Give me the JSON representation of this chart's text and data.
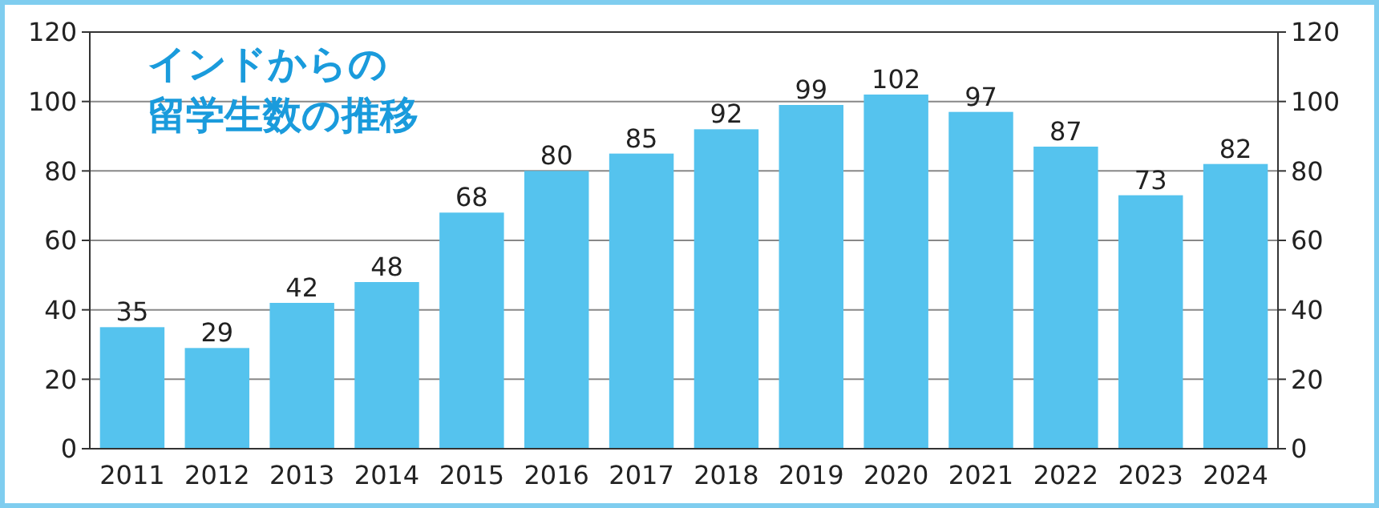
{
  "chart_data": {
    "type": "bar",
    "title": "インドからの",
    "subtitle": "留学生数の推移",
    "categories": [
      "2011",
      "2012",
      "2013",
      "2014",
      "2015",
      "2016",
      "2017",
      "2018",
      "2019",
      "2020",
      "2021",
      "2022",
      "2023",
      "2024"
    ],
    "values": [
      35,
      29,
      42,
      48,
      68,
      80,
      85,
      92,
      99,
      102,
      97,
      87,
      73,
      82
    ],
    "color": "#55c3ee",
    "ylim": [
      0,
      120
    ],
    "yticks": [
      0,
      20,
      40,
      60,
      80,
      100,
      120
    ],
    "y2lim": [
      0,
      120
    ],
    "y2ticks": [
      0,
      20,
      40,
      60,
      80,
      100,
      120
    ],
    "grid": "y",
    "data_labels": true
  }
}
